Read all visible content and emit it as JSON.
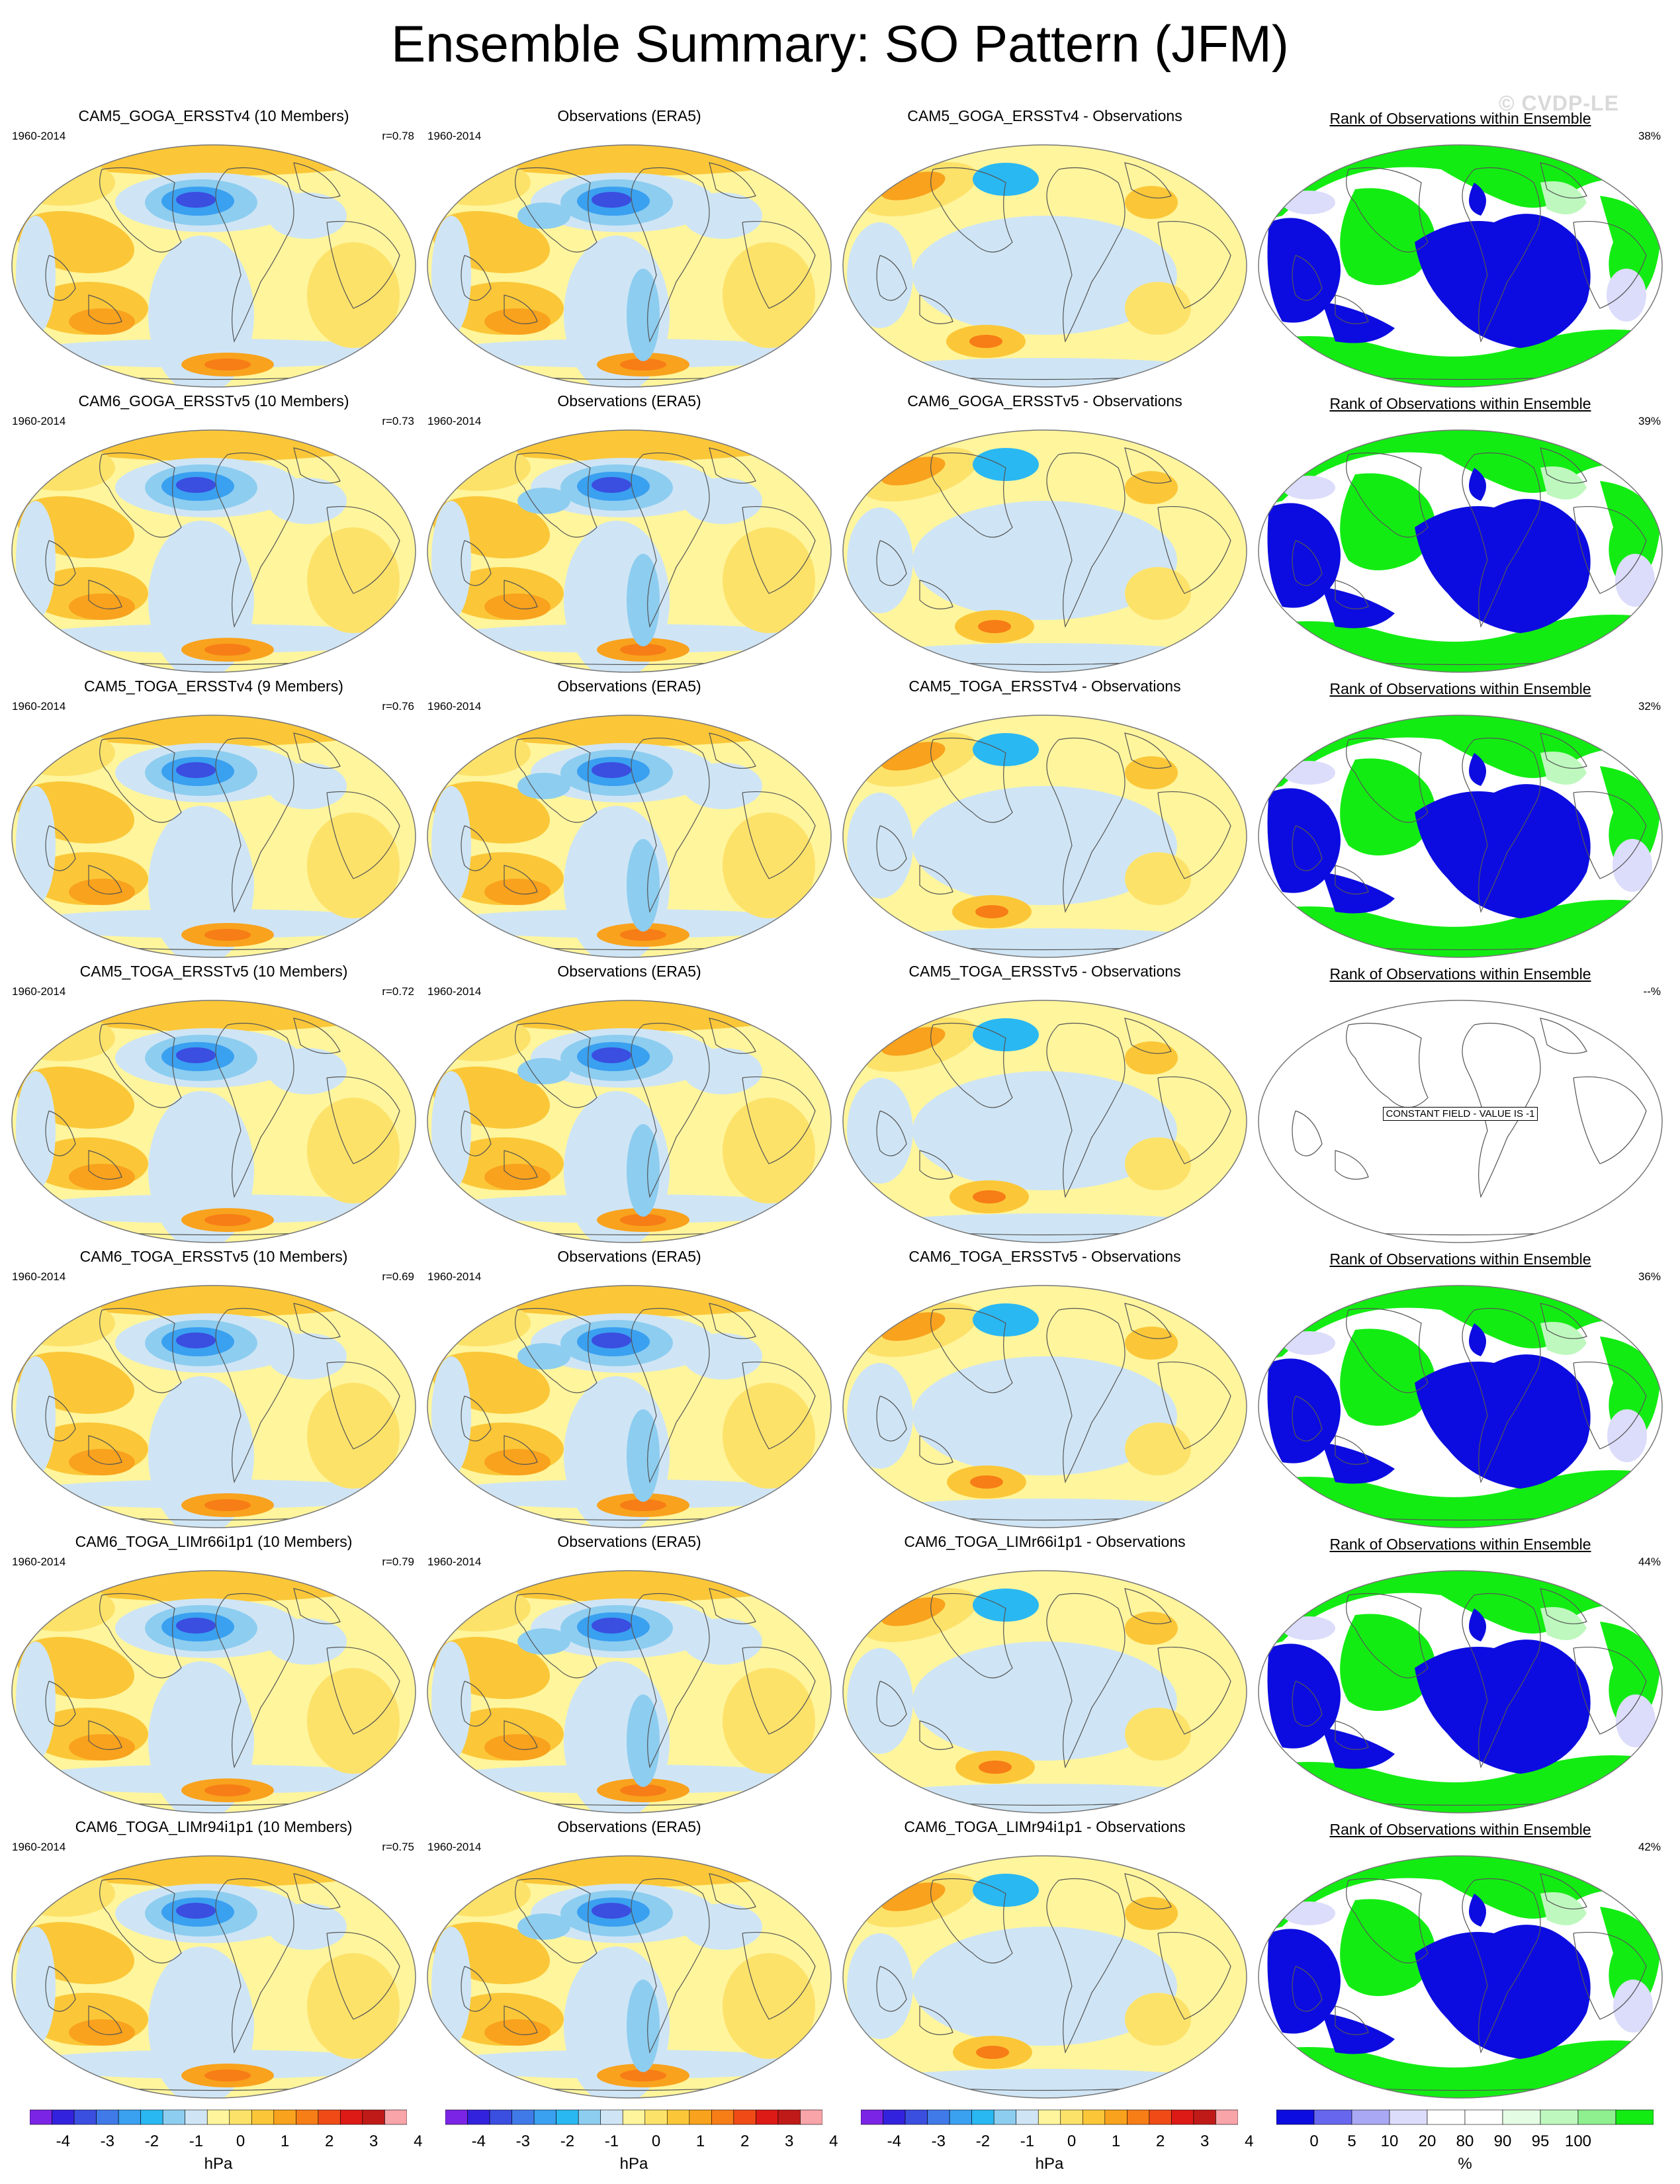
{
  "title": "Ensemble Summary: SO Pattern (JFM)",
  "watermark": "© CVDP-LE",
  "column_titles": {
    "observations": "Observations (ERA5)",
    "rank": "Rank of Observations within Ensemble"
  },
  "period": "1960-2014",
  "rows": [
    {
      "ensemble_title": "CAM5_GOGA_ERSSTv4 (10 Members)",
      "r": "r=0.78",
      "diff_title": "CAM5_GOGA_ERSSTv4 - Observations",
      "rank_pct": "38%",
      "constant": false
    },
    {
      "ensemble_title": "CAM6_GOGA_ERSSTv5 (10 Members)",
      "r": "r=0.73",
      "diff_title": "CAM6_GOGA_ERSSTv5 - Observations",
      "rank_pct": "39%",
      "constant": false
    },
    {
      "ensemble_title": "CAM5_TOGA_ERSSTv4 (9 Members)",
      "r": "r=0.76",
      "diff_title": "CAM5_TOGA_ERSSTv4 - Observations",
      "rank_pct": "32%",
      "constant": false
    },
    {
      "ensemble_title": "CAM5_TOGA_ERSSTv5 (10 Members)",
      "r": "r=0.72",
      "diff_title": "CAM5_TOGA_ERSSTv5 - Observations",
      "rank_pct": "--%",
      "constant": true
    },
    {
      "ensemble_title": "CAM6_TOGA_ERSSTv5 (10 Members)",
      "r": "r=0.69",
      "diff_title": "CAM6_TOGA_ERSSTv5 - Observations",
      "rank_pct": "36%",
      "constant": false
    },
    {
      "ensemble_title": "CAM6_TOGA_LIMr66i1p1 (10 Members)",
      "r": "r=0.79",
      "diff_title": "CAM6_TOGA_LIMr66i1p1 - Observations",
      "rank_pct": "44%",
      "constant": false
    },
    {
      "ensemble_title": "CAM6_TOGA_LIMr94i1p1 (10 Members)",
      "r": "r=0.75",
      "diff_title": "CAM6_TOGA_LIMr94i1p1 - Observations",
      "rank_pct": "42%",
      "constant": false
    }
  ],
  "constant_field_label": "CONSTANT FIELD - VALUE IS -1",
  "colors": {
    "pressure_scale": [
      "#7b24e6",
      "#3322dd",
      "#3a4ee0",
      "#3f7ae8",
      "#3aa0f0",
      "#2ab8f2",
      "#8dcdf0",
      "#cfe5f5",
      "#fff59d",
      "#fde26a",
      "#fbc738",
      "#f9a21d",
      "#f77d16",
      "#f04b16",
      "#dd1a16",
      "#c01a18",
      "#f8a4a8"
    ],
    "rank_scale": [
      "#0c0ce0",
      "#6666ee",
      "#a8a8f4",
      "#dcdcfb",
      "#ffffff",
      "#ffffff",
      "#e4fce4",
      "#bef8be",
      "#8ef08e",
      "#13ec13"
    ],
    "map_outline": "#777777",
    "coast": "#555555"
  },
  "colorbars": [
    {
      "ticks": [
        "-4",
        "-3",
        "-2",
        "-1",
        "0",
        "1",
        "2",
        "3",
        "4"
      ],
      "unit": "hPa"
    },
    {
      "ticks": [
        "-4",
        "-3",
        "-2",
        "-1",
        "0",
        "1",
        "2",
        "3",
        "4"
      ],
      "unit": "hPa"
    },
    {
      "ticks": [
        "-4",
        "-3",
        "-2",
        "-1",
        "0",
        "1",
        "2",
        "3",
        "4"
      ],
      "unit": "hPa"
    },
    {
      "ticks": [
        "0",
        "5",
        "10",
        "20",
        "80",
        "90",
        "95",
        "100"
      ],
      "unit": "%"
    }
  ]
}
